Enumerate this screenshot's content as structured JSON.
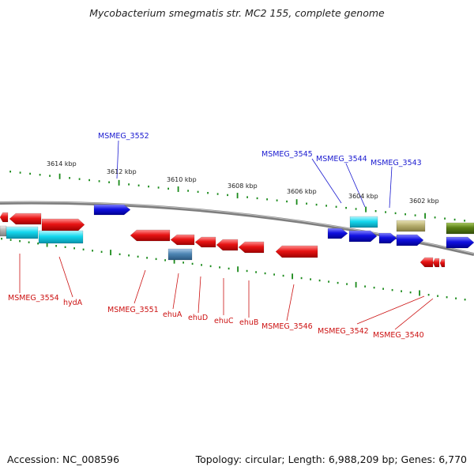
{
  "title": "Mycobacterium smegmatis str. MC2 155, complete genome",
  "footer": {
    "accession": "Accession: NC_008596",
    "info": "Topology: circular; Length: 6,988,209 bp; Genes: 6,770"
  },
  "ticks": [
    "3614 kbp",
    "3612 kbp",
    "3610 kbp",
    "3608 kbp",
    "3606 kbp",
    "3604 kbp",
    "3602 kbp"
  ],
  "top_labels": [
    "MSMEG_3552",
    "MSMEG_3545",
    "MSMEG_3544",
    "MSMEG_3543"
  ],
  "bottom_labels": [
    "MSMEG_3554",
    "hydA",
    "MSMEG_3551",
    "ehuA",
    "ehuD",
    "ehuC",
    "ehuB",
    "MSMEG_3546",
    "MSMEG_3542",
    "MSMEG_3540"
  ],
  "colors": {
    "forward": "#1010d8",
    "reverse": "#e01010",
    "cyan": "#14d8ee",
    "steel": "#4f86b4",
    "khaki": "#b8b070",
    "olive": "#5a7f14",
    "grey": "#b0b0b0",
    "backbone": "#8a8a8a",
    "tick": "#1a8a1a"
  }
}
